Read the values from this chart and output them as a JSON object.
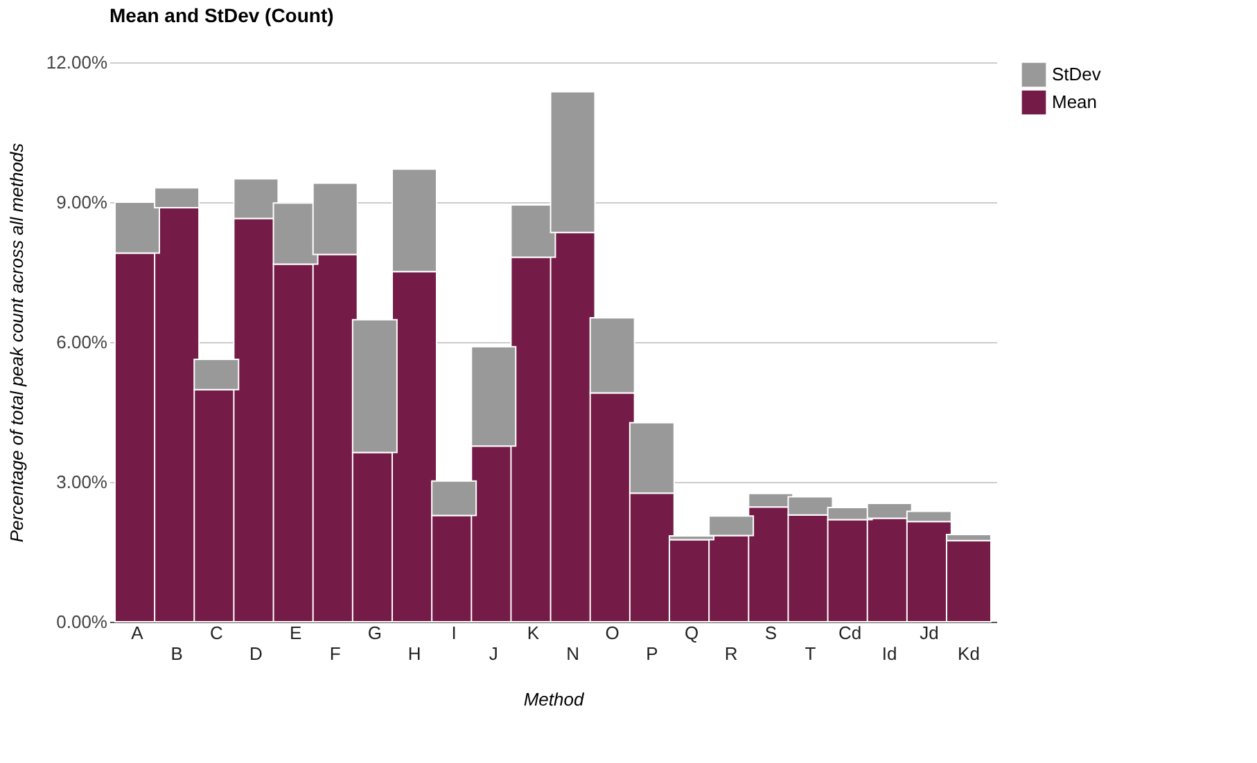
{
  "chart_data": {
    "type": "bar",
    "title": "Mean and StDev (Count)",
    "xlabel": "Method",
    "ylabel": "Percentage of total peak count across all methods",
    "categories": [
      "A",
      "B",
      "C",
      "D",
      "E",
      "F",
      "G",
      "H",
      "I",
      "J",
      "K",
      "N",
      "O",
      "P",
      "Q",
      "R",
      "S",
      "T",
      "Cd",
      "Id",
      "Jd",
      "Kd"
    ],
    "stacked": true,
    "series": [
      {
        "name": "Mean",
        "color": "#741b47",
        "values": [
          7.91,
          8.88,
          4.98,
          8.65,
          7.67,
          7.88,
          3.63,
          7.51,
          2.28,
          3.77,
          7.82,
          8.35,
          4.91,
          2.76,
          1.76,
          1.85,
          2.46,
          2.29,
          2.19,
          2.22,
          2.15,
          1.74
        ]
      },
      {
        "name": "StDev",
        "color": "#999999",
        "values": [
          1.09,
          0.43,
          0.65,
          0.85,
          1.31,
          1.53,
          2.85,
          2.2,
          0.74,
          2.13,
          1.12,
          3.02,
          1.61,
          1.51,
          0.08,
          0.42,
          0.29,
          0.39,
          0.26,
          0.32,
          0.22,
          0.13
        ]
      }
    ],
    "ylim": [
      0,
      12
    ],
    "yticks": [
      {
        "value": 0,
        "label": "0.00%"
      },
      {
        "value": 3,
        "label": "3.00%"
      },
      {
        "value": 6,
        "label": "6.00%"
      },
      {
        "value": 9,
        "label": "9.00%"
      },
      {
        "value": 12,
        "label": "12.00%"
      }
    ],
    "grid": "y",
    "legend": "top right"
  }
}
